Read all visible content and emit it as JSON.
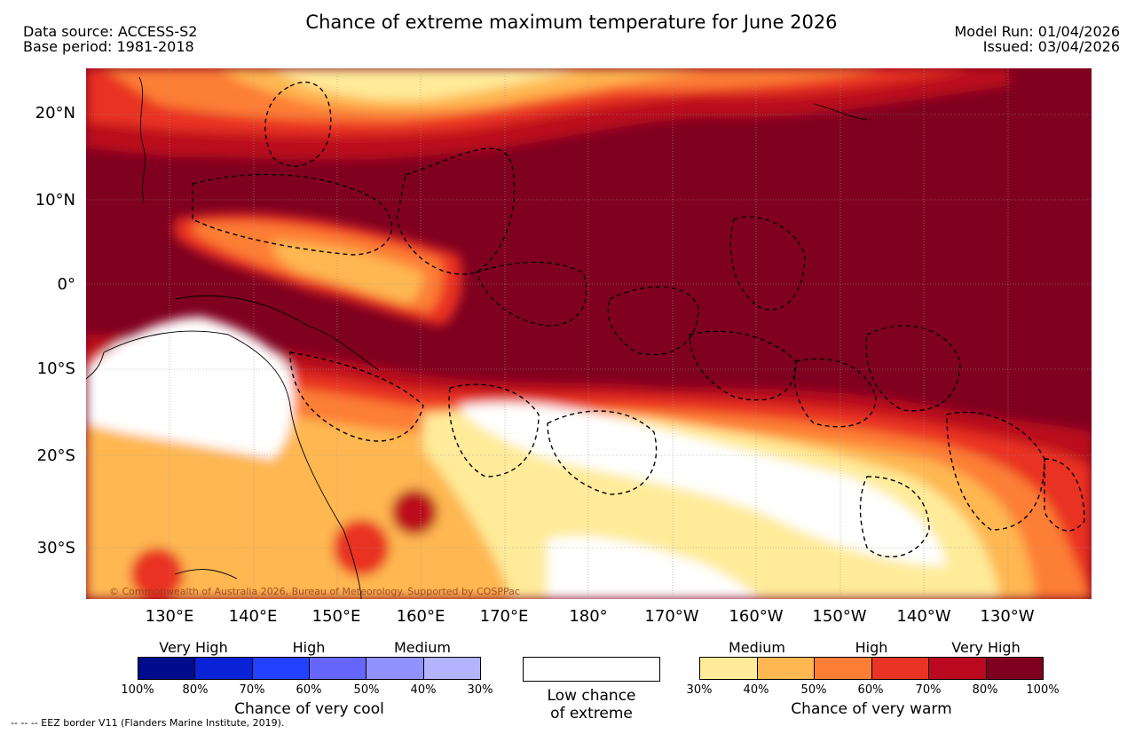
{
  "header": {
    "title": "Chance of extreme maximum temperature for June 2026",
    "data_source": "Data source: ACCESS-S2",
    "base_period": "Base period: 1981-2018",
    "model_run": "Model Run: 01/04/2026",
    "issued": "Issued: 03/04/2026"
  },
  "map": {
    "lat_labels": [
      "20°N",
      "10°N",
      "0°",
      "10°S",
      "20°S",
      "30°S"
    ],
    "lon_labels": [
      "130°E",
      "140°E",
      "150°E",
      "160°E",
      "170°E",
      "180°",
      "170°W",
      "160°W",
      "150°W",
      "140°W",
      "130°W"
    ],
    "copyright": "© Commonwealth of Australia 2026, Bureau of Meteorology. Supported by COSPPac"
  },
  "legend": {
    "cool": {
      "categories": [
        "Very High",
        "High",
        "Medium"
      ],
      "ticks": [
        "100%",
        "80%",
        "70%",
        "60%",
        "50%",
        "40%",
        "30%"
      ],
      "colors": [
        "#000c8c",
        "#0a22d6",
        "#2240ff",
        "#6666ff",
        "#9191ff",
        "#b3b3ff"
      ],
      "title": "Chance of very cool"
    },
    "low": {
      "line1": "Low chance",
      "line2": "of extreme"
    },
    "warm": {
      "categories": [
        "Medium",
        "High",
        "Very High"
      ],
      "ticks": [
        "30%",
        "40%",
        "50%",
        "60%",
        "70%",
        "80%",
        "100%"
      ],
      "colors": [
        "#ffeb99",
        "#feb751",
        "#fd7e34",
        "#e93324",
        "#bb0a1f",
        "#800020"
      ],
      "title": "Chance of very warm"
    }
  },
  "footer": {
    "eez_note": "-- -- -- EEZ border V11 (Flanders Marine Institute, 2019)."
  }
}
